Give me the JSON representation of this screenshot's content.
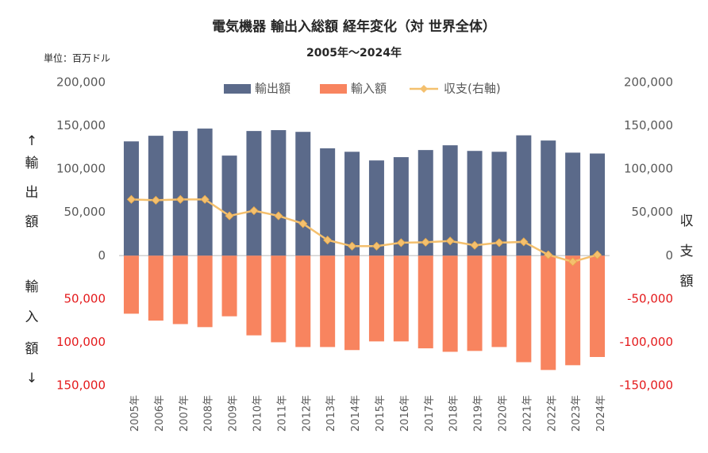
{
  "chart_data": {
    "type": "bar",
    "title": "電気機器 輸出入総額 経年変化（対 世界全体）",
    "subtitle": "2005年～2024年",
    "unit_label": "単位：百万ドル",
    "ylabel_upper": [
      "↑",
      "輸",
      "出",
      "額"
    ],
    "ylabel_lower": [
      "輸",
      "入",
      "額",
      "↓"
    ],
    "y2label": [
      "収",
      "支",
      "額"
    ],
    "categories": [
      "2005年",
      "2006年",
      "2007年",
      "2008年",
      "2009年",
      "2010年",
      "2011年",
      "2012年",
      "2013年",
      "2014年",
      "2015年",
      "2016年",
      "2017年",
      "2018年",
      "2019年",
      "2020年",
      "2021年",
      "2022年",
      "2023年",
      "2024年"
    ],
    "series": [
      {
        "name": "輸出額",
        "color": "#5b6a8a",
        "values": [
          132000,
          138500,
          144000,
          146800,
          115600,
          144000,
          145000,
          143000,
          124000,
          120000,
          110000,
          113800,
          122000,
          127500,
          121000,
          120000,
          139000,
          133000,
          119000,
          118000
        ]
      },
      {
        "name": "輸入額",
        "color": "#f8845f",
        "values": [
          -67000,
          -75000,
          -79000,
          -82500,
          -70000,
          -92000,
          -100000,
          -105500,
          -105500,
          -109000,
          -99000,
          -99000,
          -107000,
          -111000,
          -110000,
          -105500,
          -123000,
          -132000,
          -126500,
          -117000
        ]
      },
      {
        "name": "収支(右軸)",
        "color": "#f4c06e",
        "type": "line",
        "axis": "y2",
        "values": [
          65000,
          64000,
          65000,
          65000,
          46000,
          52000,
          46000,
          37000,
          18000,
          11000,
          11000,
          15000,
          15500,
          17000,
          12000,
          15000,
          16000,
          1000,
          -7000,
          1000
        ]
      }
    ],
    "ylim": [
      -150000,
      200000
    ],
    "yticks": [
      {
        "value": 200000,
        "label": "200,000"
      },
      {
        "value": 150000,
        "label": "150,000"
      },
      {
        "value": 100000,
        "label": "100,000"
      },
      {
        "value": 50000,
        "label": "50,000"
      },
      0,
      {
        "value": -50000,
        "label": "50,000"
      },
      {
        "value": -100000,
        "label": "100,000"
      },
      {
        "value": -150000,
        "label": "150,000"
      }
    ],
    "y2lim": [
      -150000,
      200000
    ],
    "y2ticks": [
      {
        "value": 200000,
        "label": "200,000"
      },
      {
        "value": 150000,
        "label": "150,000"
      },
      {
        "value": 100000,
        "label": "100,000"
      },
      {
        "value": 50000,
        "label": "50,000"
      },
      0,
      {
        "value": -50000,
        "label": "-50,000"
      },
      {
        "value": -100000,
        "label": "-100,000"
      },
      {
        "value": -150000,
        "label": "-150,000"
      }
    ],
    "legend": "top"
  }
}
